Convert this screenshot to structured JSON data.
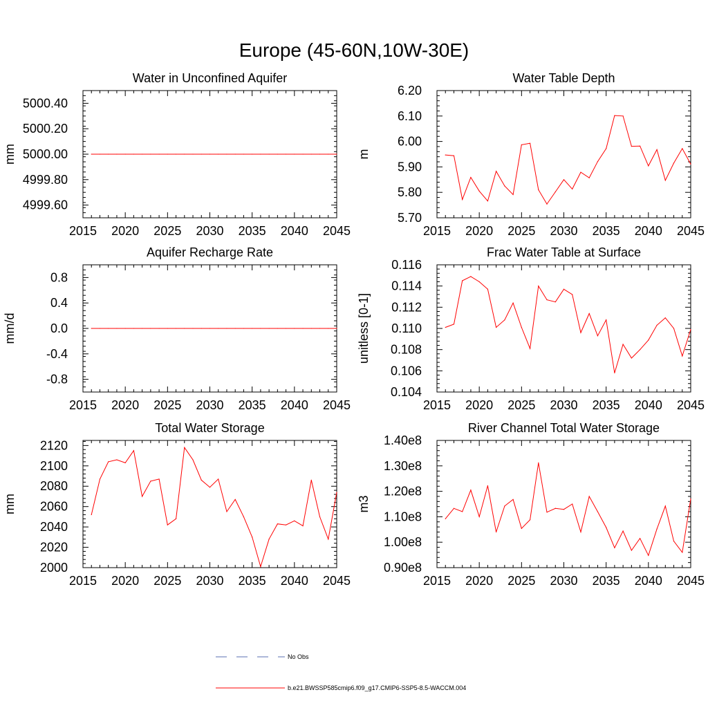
{
  "figure": {
    "title": "Europe (45-60N,10W-30E)",
    "series_color": "#ff0000",
    "obs_color": "#5a6fb0"
  },
  "legend": {
    "obs_label": "No Obs",
    "model_label": "b.e21.BWSSP585cmip6.f09_g17.CMIP6-SSP5-8.5-WACCM.004"
  },
  "chart_data": [
    {
      "type": "line",
      "title": "Water in Unconfined Aquifer",
      "ylabel": "mm",
      "xlim": [
        2015,
        2045
      ],
      "ylim": [
        4999.5,
        5000.5
      ],
      "xticks": [
        2015,
        2020,
        2025,
        2030,
        2035,
        2040,
        2045
      ],
      "yticks": [
        4999.6,
        4999.8,
        5000.0,
        5000.2,
        5000.4
      ],
      "ytick_labels": [
        "4999.60",
        "4999.80",
        "5000.00",
        "5000.20",
        "5000.40"
      ],
      "x": [
        2016,
        2017,
        2018,
        2019,
        2020,
        2021,
        2022,
        2023,
        2024,
        2025,
        2026,
        2027,
        2028,
        2029,
        2030,
        2031,
        2032,
        2033,
        2034,
        2035,
        2036,
        2037,
        2038,
        2039,
        2040,
        2041,
        2042,
        2043,
        2044,
        2045
      ],
      "values": [
        5000.0,
        5000.0,
        5000.0,
        5000.0,
        5000.0,
        5000.0,
        5000.0,
        5000.0,
        5000.0,
        5000.0,
        5000.0,
        5000.0,
        5000.0,
        5000.0,
        5000.0,
        5000.0,
        5000.0,
        5000.0,
        5000.0,
        5000.0,
        5000.0,
        5000.0,
        5000.0,
        5000.0,
        5000.0,
        5000.0,
        5000.0,
        5000.0,
        5000.0,
        5000.0
      ]
    },
    {
      "type": "line",
      "title": "Water Table Depth",
      "ylabel": "m",
      "xlim": [
        2015,
        2045
      ],
      "ylim": [
        5.7,
        6.2
      ],
      "xticks": [
        2015,
        2020,
        2025,
        2030,
        2035,
        2040,
        2045
      ],
      "yticks": [
        5.7,
        5.8,
        5.9,
        6.0,
        6.1,
        6.2
      ],
      "ytick_labels": [
        "5.70",
        "5.80",
        "5.90",
        "6.00",
        "6.10",
        "6.20"
      ],
      "x": [
        2016,
        2017,
        2018,
        2019,
        2020,
        2021,
        2022,
        2023,
        2024,
        2025,
        2026,
        2027,
        2028,
        2029,
        2030,
        2031,
        2032,
        2033,
        2034,
        2035,
        2036,
        2037,
        2038,
        2039,
        2040,
        2041,
        2042,
        2043,
        2044,
        2045
      ],
      "values": [
        5.947,
        5.944,
        5.772,
        5.859,
        5.805,
        5.766,
        5.883,
        5.825,
        5.791,
        5.987,
        5.993,
        5.81,
        5.754,
        5.802,
        5.85,
        5.813,
        5.879,
        5.857,
        5.921,
        5.972,
        6.102,
        6.1,
        5.981,
        5.982,
        5.904,
        5.968,
        5.847,
        5.915,
        5.972,
        5.911
      ]
    },
    {
      "type": "line",
      "title": "Aquifer Recharge Rate",
      "ylabel": "mm/d",
      "xlim": [
        2015,
        2045
      ],
      "ylim": [
        -1.0,
        1.0
      ],
      "xticks": [
        2015,
        2020,
        2025,
        2030,
        2035,
        2040,
        2045
      ],
      "yticks": [
        -0.8,
        -0.4,
        0.0,
        0.4,
        0.8
      ],
      "ytick_labels": [
        "-0.8",
        "-0.4",
        "0.0",
        "0.4",
        "0.8"
      ],
      "x": [
        2016,
        2017,
        2018,
        2019,
        2020,
        2021,
        2022,
        2023,
        2024,
        2025,
        2026,
        2027,
        2028,
        2029,
        2030,
        2031,
        2032,
        2033,
        2034,
        2035,
        2036,
        2037,
        2038,
        2039,
        2040,
        2041,
        2042,
        2043,
        2044,
        2045
      ],
      "values": [
        0,
        0,
        0,
        0,
        0,
        0,
        0,
        0,
        0,
        0,
        0,
        0,
        0,
        0,
        0,
        0,
        0,
        0,
        0,
        0,
        0,
        0,
        0,
        0,
        0,
        0,
        0,
        0,
        0,
        0
      ]
    },
    {
      "type": "line",
      "title": "Frac Water Table at Surface",
      "ylabel": "unitless [0-1]",
      "xlim": [
        2015,
        2045
      ],
      "ylim": [
        0.104,
        0.116
      ],
      "xticks": [
        2015,
        2020,
        2025,
        2030,
        2035,
        2040,
        2045
      ],
      "yticks": [
        0.104,
        0.106,
        0.108,
        0.11,
        0.112,
        0.114,
        0.116
      ],
      "ytick_labels": [
        "0.104",
        "0.106",
        "0.108",
        "0.110",
        "0.112",
        "0.114",
        "0.116"
      ],
      "x": [
        2016,
        2017,
        2018,
        2019,
        2020,
        2021,
        2022,
        2023,
        2024,
        2025,
        2026,
        2027,
        2028,
        2029,
        2030,
        2031,
        2032,
        2033,
        2034,
        2035,
        2036,
        2037,
        2038,
        2039,
        2040,
        2041,
        2042,
        2043,
        2044,
        2045
      ],
      "values": [
        0.1101,
        0.1104,
        0.1145,
        0.1149,
        0.1144,
        0.1137,
        0.1101,
        0.1108,
        0.1124,
        0.1101,
        0.1081,
        0.114,
        0.1127,
        0.1125,
        0.1137,
        0.1132,
        0.1096,
        0.1114,
        0.1093,
        0.1108,
        0.1058,
        0.1085,
        0.1072,
        0.108,
        0.1089,
        0.1103,
        0.111,
        0.11,
        0.1074,
        0.1099
      ]
    },
    {
      "type": "line",
      "title": "Total Water Storage",
      "ylabel": "mm",
      "xlim": [
        2015,
        2045
      ],
      "ylim": [
        2000,
        2125
      ],
      "xticks": [
        2015,
        2020,
        2025,
        2030,
        2035,
        2040,
        2045
      ],
      "yticks": [
        2000,
        2020,
        2040,
        2060,
        2080,
        2100,
        2120
      ],
      "ytick_labels": [
        "2000",
        "2020",
        "2040",
        "2060",
        "2080",
        "2100",
        "2120"
      ],
      "x": [
        2016,
        2017,
        2018,
        2019,
        2020,
        2021,
        2022,
        2023,
        2024,
        2025,
        2026,
        2027,
        2028,
        2029,
        2030,
        2031,
        2032,
        2033,
        2034,
        2035,
        2036,
        2037,
        2038,
        2039,
        2040,
        2041,
        2042,
        2043,
        2044,
        2045
      ],
      "values": [
        2052,
        2087,
        2104,
        2106,
        2103,
        2115,
        2070,
        2085,
        2087,
        2042,
        2048,
        2118,
        2106,
        2086,
        2079,
        2087,
        2055,
        2067,
        2050,
        2030,
        2001,
        2028,
        2043,
        2042,
        2046,
        2041,
        2086,
        2050,
        2028,
        2074
      ]
    },
    {
      "type": "line",
      "title": "River Channel Total Water Storage",
      "ylabel": "m3",
      "xlim": [
        2015,
        2045
      ],
      "ylim": [
        0.9,
        1.4
      ],
      "y_multiplier_note": "e8",
      "xticks": [
        2015,
        2020,
        2025,
        2030,
        2035,
        2040,
        2045
      ],
      "yticks": [
        0.9,
        1.0,
        1.1,
        1.2,
        1.3,
        1.4
      ],
      "ytick_labels": [
        "0.90e8",
        "1.00e8",
        "1.10e8",
        "1.20e8",
        "1.30e8",
        "1.40e8"
      ],
      "x": [
        2016,
        2017,
        2018,
        2019,
        2020,
        2021,
        2022,
        2023,
        2024,
        2025,
        2026,
        2027,
        2028,
        2029,
        2030,
        2031,
        2032,
        2033,
        2034,
        2035,
        2036,
        2037,
        2038,
        2039,
        2040,
        2041,
        2042,
        2043,
        2044,
        2045
      ],
      "values": [
        1.092,
        1.133,
        1.12,
        1.205,
        1.1,
        1.222,
        1.04,
        1.142,
        1.168,
        1.054,
        1.088,
        1.312,
        1.118,
        1.133,
        1.129,
        1.15,
        1.04,
        1.18,
        1.12,
        1.058,
        0.978,
        1.044,
        0.968,
        1.015,
        0.948,
        1.052,
        1.142,
        1.004,
        0.96,
        1.17
      ]
    }
  ]
}
